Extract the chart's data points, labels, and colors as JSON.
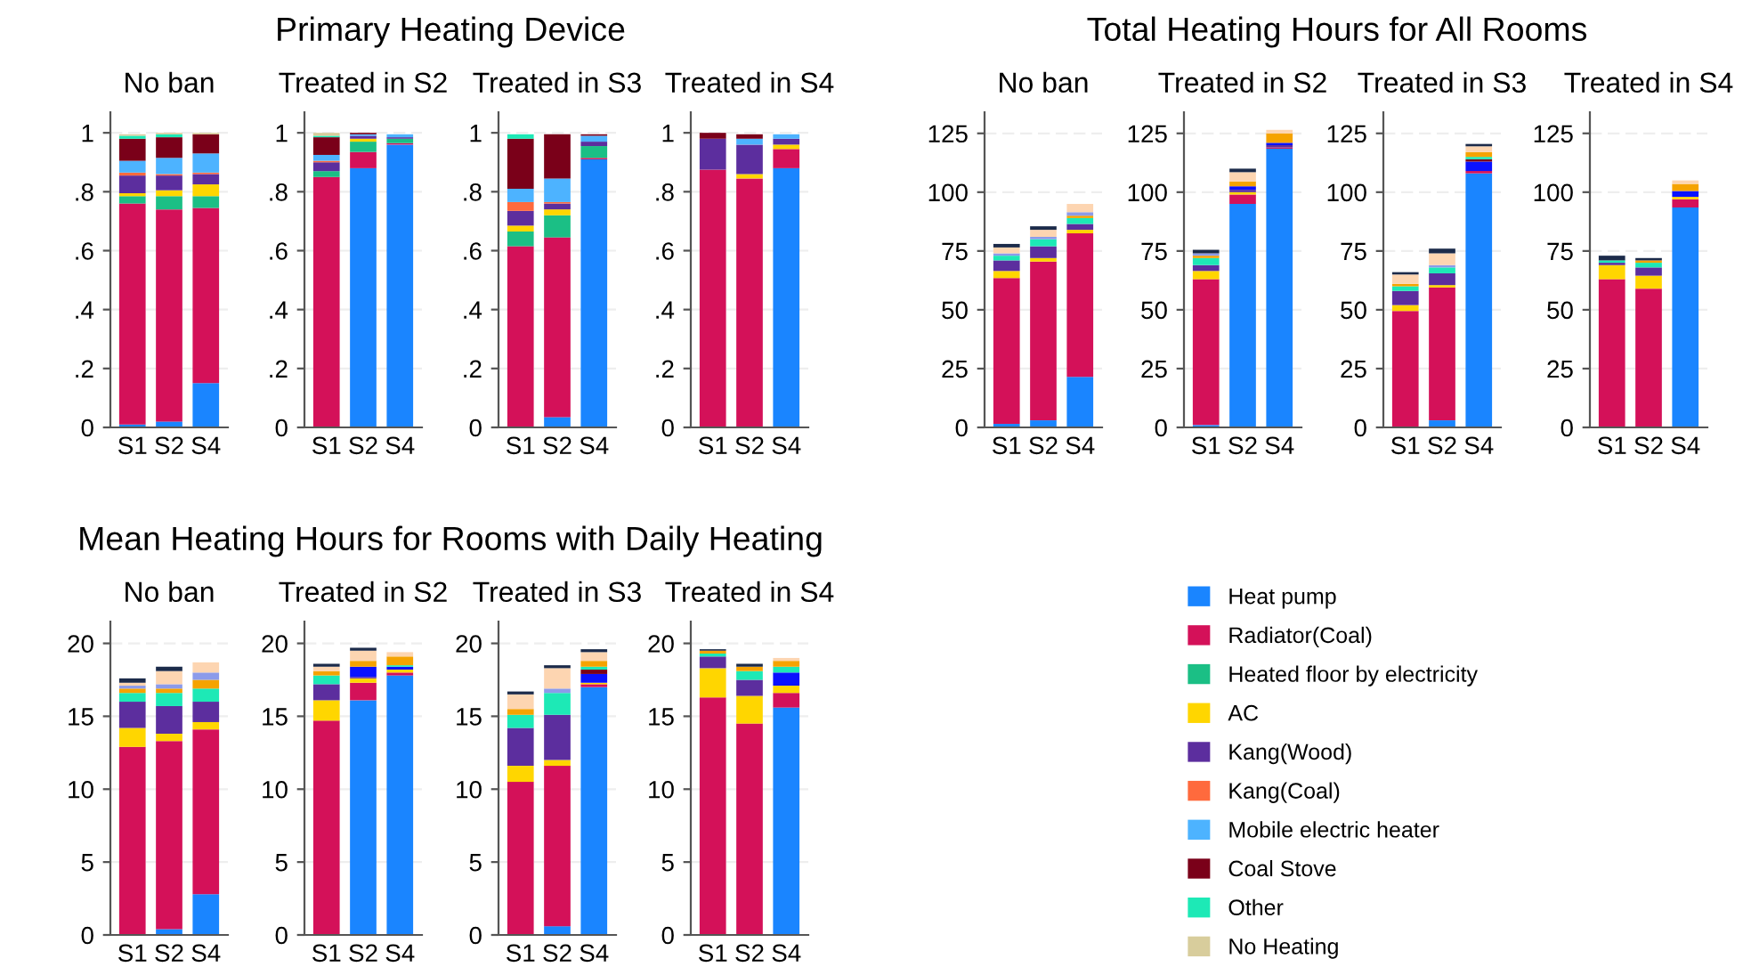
{
  "chart_data": [
    {
      "type": "bar",
      "stacked": true,
      "title": "No ban",
      "legend": "right",
      "annotations": [
        "Primary Heating Device"
      ],
      "categories": [
        "S1",
        "S2",
        "S4"
      ],
      "ylim": [
        0,
        1.07
      ],
      "yticks": [
        0,
        {
          "value": 0.2,
          "label": ".2"
        },
        {
          "value": 0.4,
          "label": ".4"
        },
        {
          "value": 0.6,
          "label": ".6"
        },
        {
          "value": 0.8,
          "label": ".8"
        },
        1
      ],
      "grid": "y",
      "series": [
        {
          "name": "Heat pump",
          "color": "#1a85ff",
          "values": [
            0.01,
            0.02,
            0.15
          ]
        },
        {
          "name": "Radiator(Coal)",
          "color": "#d41159",
          "values": [
            0.75,
            0.72,
            0.595
          ]
        },
        {
          "name": "Heated floor by electricity",
          "color": "#1bbf85",
          "values": [
            0.025,
            0.045,
            0.04
          ]
        },
        {
          "name": "AC",
          "color": "#ffd600",
          "values": [
            0.01,
            0.02,
            0.04
          ]
        },
        {
          "name": "Kang(Wood)",
          "color": "#5c2e9e",
          "values": [
            0.06,
            0.05,
            0.035
          ]
        },
        {
          "name": "Kang(Coal)",
          "color": "#ff6a3d",
          "values": [
            0.01,
            0.005,
            0.005
          ]
        },
        {
          "name": "Mobile electric heater",
          "color": "#4db3ff",
          "values": [
            0.04,
            0.055,
            0.065
          ]
        },
        {
          "name": "Coal Stove",
          "color": "#7a0019",
          "values": [
            0.075,
            0.07,
            0.065
          ]
        },
        {
          "name": "Other",
          "color": "#1de9b6",
          "values": [
            0.01,
            0.01,
            0
          ]
        },
        {
          "name": "No Heating",
          "color": "#d8cd9c",
          "values": [
            0.005,
            0.005,
            0.005
          ]
        }
      ]
    },
    {
      "type": "bar",
      "stacked": true,
      "title": "Treated in S2",
      "categories": [
        "S1",
        "S2",
        "S4"
      ],
      "ylim": [
        0,
        1.07
      ],
      "yticks": [
        0,
        {
          "value": 0.2,
          "label": ".2"
        },
        {
          "value": 0.4,
          "label": ".4"
        },
        {
          "value": 0.6,
          "label": ".6"
        },
        {
          "value": 0.8,
          "label": ".8"
        },
        1
      ],
      "grid": "y",
      "series": [
        {
          "name": "Heat pump",
          "color": "#1a85ff",
          "values": [
            0,
            0.88,
            0.96
          ]
        },
        {
          "name": "Radiator(Coal)",
          "color": "#d41159",
          "values": [
            0.85,
            0.055,
            0.005
          ]
        },
        {
          "name": "Heated floor by electricity",
          "color": "#1bbf85",
          "values": [
            0.02,
            0.035,
            0.015
          ]
        },
        {
          "name": "AC",
          "color": "#ffd600",
          "values": [
            0,
            0.01,
            0
          ]
        },
        {
          "name": "Kang(Wood)",
          "color": "#5c2e9e",
          "values": [
            0.03,
            0.01,
            0.005
          ]
        },
        {
          "name": "Kang(Coal)",
          "color": "#ff6a3d",
          "values": [
            0.005,
            0,
            0
          ]
        },
        {
          "name": "Mobile electric heater",
          "color": "#4db3ff",
          "values": [
            0.02,
            0.005,
            0.01
          ]
        },
        {
          "name": "Coal Stove",
          "color": "#7a0019",
          "values": [
            0.06,
            0.005,
            0
          ]
        },
        {
          "name": "Other",
          "color": "#1de9b6",
          "values": [
            0.005,
            0,
            0
          ]
        },
        {
          "name": "No Heating",
          "color": "#d8cd9c",
          "values": [
            0.01,
            0,
            0
          ]
        }
      ]
    },
    {
      "type": "bar",
      "stacked": true,
      "title": "Treated in S3",
      "categories": [
        "S1",
        "S2",
        "S4"
      ],
      "ylim": [
        0,
        1.07
      ],
      "yticks": [
        0,
        {
          "value": 0.2,
          "label": ".2"
        },
        {
          "value": 0.4,
          "label": ".4"
        },
        {
          "value": 0.6,
          "label": ".6"
        },
        {
          "value": 0.8,
          "label": ".8"
        },
        1
      ],
      "grid": "y",
      "series": [
        {
          "name": "Heat pump",
          "color": "#1a85ff",
          "values": [
            0,
            0.035,
            0.91
          ]
        },
        {
          "name": "Radiator(Coal)",
          "color": "#d41159",
          "values": [
            0.615,
            0.61,
            0.005
          ]
        },
        {
          "name": "Heated floor by electricity",
          "color": "#1bbf85",
          "values": [
            0.05,
            0.075,
            0.04
          ]
        },
        {
          "name": "AC",
          "color": "#ffd600",
          "values": [
            0.02,
            0.02,
            0
          ]
        },
        {
          "name": "Kang(Wood)",
          "color": "#5c2e9e",
          "values": [
            0.05,
            0.02,
            0.015
          ]
        },
        {
          "name": "Kang(Coal)",
          "color": "#ff6a3d",
          "values": [
            0.03,
            0.005,
            0
          ]
        },
        {
          "name": "Mobile electric heater",
          "color": "#4db3ff",
          "values": [
            0.045,
            0.08,
            0.02
          ]
        },
        {
          "name": "Coal Stove",
          "color": "#7a0019",
          "values": [
            0.17,
            0.15,
            0.005
          ]
        },
        {
          "name": "Other",
          "color": "#1de9b6",
          "values": [
            0.015,
            0,
            0
          ]
        }
      ]
    },
    {
      "type": "bar",
      "stacked": true,
      "title": "Treated in S4",
      "categories": [
        "S1",
        "S2",
        "S4"
      ],
      "ylim": [
        0,
        1.07
      ],
      "yticks": [
        0,
        {
          "value": 0.2,
          "label": ".2"
        },
        {
          "value": 0.4,
          "label": ".4"
        },
        {
          "value": 0.6,
          "label": ".6"
        },
        {
          "value": 0.8,
          "label": ".8"
        },
        1
      ],
      "grid": "y",
      "series": [
        {
          "name": "Heat pump",
          "color": "#1a85ff",
          "values": [
            0,
            0,
            0.88
          ]
        },
        {
          "name": "Radiator(Coal)",
          "color": "#d41159",
          "values": [
            0.875,
            0.845,
            0.065
          ]
        },
        {
          "name": "AC",
          "color": "#ffd600",
          "values": [
            0,
            0.015,
            0.015
          ]
        },
        {
          "name": "Kang(Wood)",
          "color": "#5c2e9e",
          "values": [
            0.105,
            0.1,
            0.02
          ]
        },
        {
          "name": "Mobile electric heater",
          "color": "#4db3ff",
          "values": [
            0,
            0.02,
            0.015
          ]
        },
        {
          "name": "Coal Stove",
          "color": "#7a0019",
          "values": [
            0.02,
            0.015,
            0
          ]
        }
      ]
    },
    {
      "type": "bar",
      "stacked": true,
      "title": "No ban",
      "annotations": [
        "Total Heating Hours for All Rooms"
      ],
      "categories": [
        "S1",
        "S2",
        "S4"
      ],
      "ylim": [
        0,
        134
      ],
      "yticks": [
        0,
        25,
        50,
        75,
        100,
        125
      ],
      "grid": "y",
      "series": [
        {
          "name": "Heat pump",
          "color": "#1a85ff",
          "values": [
            1.5,
            3,
            21.5
          ]
        },
        {
          "name": "Radiator(Coal)",
          "color": "#d41159",
          "values": [
            62,
            67.5,
            61
          ]
        },
        {
          "name": "AC",
          "color": "#ffd600",
          "values": [
            3,
            1.5,
            1.5
          ]
        },
        {
          "name": "Kang(Wood)",
          "color": "#5c2e9e",
          "values": [
            4.5,
            5,
            2.5
          ]
        },
        {
          "name": "Other",
          "color": "#1de9b6",
          "values": [
            2,
            3,
            2.5
          ]
        },
        {
          "color": "#f5a300",
          "values": [
            0,
            0,
            1
          ]
        },
        {
          "color": "#8c9bea",
          "values": [
            1,
            1,
            1.5
          ]
        },
        {
          "color": "#fdd5b1",
          "values": [
            2.5,
            3,
            3.5
          ]
        },
        {
          "color": "#1c2b4a",
          "values": [
            1.5,
            1.5,
            0
          ]
        }
      ]
    },
    {
      "type": "bar",
      "stacked": true,
      "title": "Treated in S2",
      "categories": [
        "S1",
        "S2",
        "S4"
      ],
      "ylim": [
        0,
        134
      ],
      "yticks": [
        0,
        25,
        50,
        75,
        100,
        125
      ],
      "grid": "y",
      "series": [
        {
          "name": "Heat pump",
          "color": "#1a85ff",
          "values": [
            1,
            95,
            118.5
          ]
        },
        {
          "name": "Radiator(Coal)",
          "color": "#d41159",
          "values": [
            62,
            4,
            0.5
          ]
        },
        {
          "name": "AC",
          "color": "#ffd600",
          "values": [
            3.5,
            1,
            0
          ]
        },
        {
          "name": "Kang(Wood)",
          "color": "#5c2e9e",
          "values": [
            2.5,
            1,
            1
          ]
        },
        {
          "color": "#0a12ff",
          "values": [
            0,
            1.5,
            1
          ]
        },
        {
          "name": "Other",
          "color": "#1de9b6",
          "values": [
            3,
            0,
            0
          ]
        },
        {
          "color": "#f5a300",
          "values": [
            1,
            2,
            4
          ]
        },
        {
          "color": "#8c9bea",
          "values": [
            1,
            0,
            0
          ]
        },
        {
          "color": "#fdd5b1",
          "values": [
            0,
            4,
            1.5
          ]
        },
        {
          "color": "#1c2b4a",
          "values": [
            1.5,
            1.5,
            0
          ]
        }
      ]
    },
    {
      "type": "bar",
      "stacked": true,
      "title": "Treated in S3",
      "categories": [
        "S1",
        "S2",
        "S4"
      ],
      "ylim": [
        0,
        134
      ],
      "yticks": [
        0,
        25,
        50,
        75,
        100,
        125
      ],
      "grid": "y",
      "series": [
        {
          "name": "Heat pump",
          "color": "#1a85ff",
          "values": [
            0,
            3,
            108
          ]
        },
        {
          "name": "Radiator(Coal)",
          "color": "#d41159",
          "values": [
            49.5,
            56.5,
            1
          ]
        },
        {
          "name": "AC",
          "color": "#ffd600",
          "values": [
            2.5,
            1,
            0
          ]
        },
        {
          "name": "Kang(Wood)",
          "color": "#5c2e9e",
          "values": [
            6,
            5,
            0
          ]
        },
        {
          "color": "#0a12ff",
          "values": [
            0,
            0,
            4
          ]
        },
        {
          "name": "Coal Stove",
          "color": "#7a0019",
          "values": [
            0,
            0,
            1
          ]
        },
        {
          "name": "Other",
          "color": "#1de9b6",
          "values": [
            2,
            2.5,
            1
          ]
        },
        {
          "color": "#f5a300",
          "values": [
            1,
            0,
            2
          ]
        },
        {
          "color": "#8c9bea",
          "values": [
            0,
            1,
            0
          ]
        },
        {
          "color": "#fdd5b1",
          "values": [
            4,
            5,
            2.5
          ]
        },
        {
          "color": "#1c2b4a",
          "values": [
            1,
            2,
            1
          ]
        }
      ]
    },
    {
      "type": "bar",
      "stacked": true,
      "title": "Treated in S4",
      "categories": [
        "S1",
        "S2",
        "S4"
      ],
      "ylim": [
        0,
        134
      ],
      "yticks": [
        0,
        25,
        50,
        75,
        100,
        125
      ],
      "grid": "y",
      "series": [
        {
          "name": "Heat pump",
          "color": "#1a85ff",
          "values": [
            0,
            0,
            93.5
          ]
        },
        {
          "name": "Radiator(Coal)",
          "color": "#d41159",
          "values": [
            63,
            59,
            3.5
          ]
        },
        {
          "name": "AC",
          "color": "#ffd600",
          "values": [
            6,
            5.5,
            1
          ]
        },
        {
          "name": "Kang(Wood)",
          "color": "#5c2e9e",
          "values": [
            1,
            3.5,
            0
          ]
        },
        {
          "color": "#0a12ff",
          "values": [
            0,
            0,
            2.5
          ]
        },
        {
          "name": "Other",
          "color": "#1de9b6",
          "values": [
            1,
            2,
            0
          ]
        },
        {
          "color": "#f5a300",
          "values": [
            0,
            1,
            3
          ]
        },
        {
          "color": "#fdd5b1",
          "values": [
            0,
            0,
            1.5
          ]
        },
        {
          "color": "#1c2b4a",
          "values": [
            2,
            1,
            0
          ]
        }
      ]
    },
    {
      "type": "bar",
      "stacked": true,
      "title": "No ban",
      "annotations": [
        "Mean Heating Hours for Rooms with Daily Heating"
      ],
      "categories": [
        "S1",
        "S2",
        "S4"
      ],
      "ylim": [
        0,
        21.5
      ],
      "yticks": [
        0,
        5,
        10,
        15,
        20
      ],
      "grid": "y",
      "series": [
        {
          "name": "Heat pump",
          "color": "#1a85ff",
          "values": [
            0,
            0.4,
            2.8
          ]
        },
        {
          "name": "Radiator(Coal)",
          "color": "#d41159",
          "values": [
            12.9,
            12.9,
            11.3
          ]
        },
        {
          "name": "AC",
          "color": "#ffd600",
          "values": [
            1.3,
            0.5,
            0.5
          ]
        },
        {
          "name": "Kang(Wood)",
          "color": "#5c2e9e",
          "values": [
            1.8,
            1.9,
            1.4
          ]
        },
        {
          "name": "Other",
          "color": "#1de9b6",
          "values": [
            0.6,
            0.9,
            0.9
          ]
        },
        {
          "color": "#f5a300",
          "values": [
            0.3,
            0.3,
            0.6
          ]
        },
        {
          "color": "#8c9bea",
          "values": [
            0.2,
            0.3,
            0.5
          ]
        },
        {
          "color": "#fdd5b1",
          "values": [
            0.2,
            0.9,
            0.7
          ]
        },
        {
          "color": "#1c2b4a",
          "values": [
            0.3,
            0.3,
            0
          ]
        }
      ]
    },
    {
      "type": "bar",
      "stacked": true,
      "title": "Treated in S2",
      "categories": [
        "S1",
        "S2",
        "S4"
      ],
      "ylim": [
        0,
        21.5
      ],
      "yticks": [
        0,
        5,
        10,
        15,
        20
      ],
      "grid": "y",
      "series": [
        {
          "name": "Heat pump",
          "color": "#1a85ff",
          "values": [
            0,
            16.1,
            17.8
          ]
        },
        {
          "name": "Radiator(Coal)",
          "color": "#d41159",
          "values": [
            14.7,
            1.2,
            0.2
          ]
        },
        {
          "name": "AC",
          "color": "#ffd600",
          "values": [
            1.4,
            0.3,
            0.2
          ]
        },
        {
          "name": "Kang(Wood)",
          "color": "#5c2e9e",
          "values": [
            1.1,
            0.1,
            0
          ]
        },
        {
          "color": "#0a12ff",
          "values": [
            0,
            0.7,
            0.2
          ]
        },
        {
          "name": "Other",
          "color": "#1de9b6",
          "values": [
            0.6,
            0,
            0.1
          ]
        },
        {
          "color": "#f5a300",
          "values": [
            0.3,
            0.4,
            0.6
          ]
        },
        {
          "color": "#fdd5b1",
          "values": [
            0.3,
            0.7,
            0.3
          ]
        },
        {
          "color": "#1c2b4a",
          "values": [
            0.2,
            0.2,
            0
          ]
        }
      ]
    },
    {
      "type": "bar",
      "stacked": true,
      "title": "Treated in S3",
      "categories": [
        "S1",
        "S2",
        "S4"
      ],
      "ylim": [
        0,
        21.5
      ],
      "yticks": [
        0,
        5,
        10,
        15,
        20
      ],
      "grid": "y",
      "series": [
        {
          "name": "Heat pump",
          "color": "#1a85ff",
          "values": [
            0,
            0.6,
            17
          ]
        },
        {
          "name": "Radiator(Coal)",
          "color": "#d41159",
          "values": [
            10.5,
            11,
            0.2
          ]
        },
        {
          "name": "AC",
          "color": "#ffd600",
          "values": [
            1.1,
            0.4,
            0.1
          ]
        },
        {
          "name": "Kang(Wood)",
          "color": "#5c2e9e",
          "values": [
            2.6,
            3.1,
            0
          ]
        },
        {
          "color": "#0a12ff",
          "values": [
            0,
            0,
            0.6
          ]
        },
        {
          "name": "Coal Stove",
          "color": "#7a0019",
          "values": [
            0,
            0,
            0.3
          ]
        },
        {
          "name": "Other",
          "color": "#1de9b6",
          "values": [
            0.9,
            1.5,
            0.2
          ]
        },
        {
          "color": "#f5a300",
          "values": [
            0.4,
            0,
            0.4
          ]
        },
        {
          "color": "#8c9bea",
          "values": [
            0,
            0.3,
            0
          ]
        },
        {
          "color": "#fdd5b1",
          "values": [
            1,
            1.4,
            0.6
          ]
        },
        {
          "color": "#1c2b4a",
          "values": [
            0.2,
            0.2,
            0.2
          ]
        }
      ]
    },
    {
      "type": "bar",
      "stacked": true,
      "title": "Treated in S4",
      "categories": [
        "S1",
        "S2",
        "S4"
      ],
      "ylim": [
        0,
        21.5
      ],
      "yticks": [
        0,
        5,
        10,
        15,
        20
      ],
      "grid": "y",
      "series": [
        {
          "name": "Heat pump",
          "color": "#1a85ff",
          "values": [
            0,
            0,
            15.6
          ]
        },
        {
          "name": "Radiator(Coal)",
          "color": "#d41159",
          "values": [
            16.3,
            14.5,
            1
          ]
        },
        {
          "name": "AC",
          "color": "#ffd600",
          "values": [
            2,
            1.9,
            0.5
          ]
        },
        {
          "name": "Kang(Wood)",
          "color": "#5c2e9e",
          "values": [
            0.8,
            1.1,
            0
          ]
        },
        {
          "color": "#0a12ff",
          "values": [
            0,
            0,
            0.9
          ]
        },
        {
          "name": "Other",
          "color": "#1de9b6",
          "values": [
            0.2,
            0.6,
            0.4
          ]
        },
        {
          "color": "#f5a300",
          "values": [
            0.2,
            0.3,
            0.4
          ]
        },
        {
          "color": "#fdd5b1",
          "values": [
            0,
            0,
            0.2
          ]
        },
        {
          "color": "#1c2b4a",
          "values": [
            0.1,
            0.2,
            0
          ]
        }
      ]
    }
  ]
}
